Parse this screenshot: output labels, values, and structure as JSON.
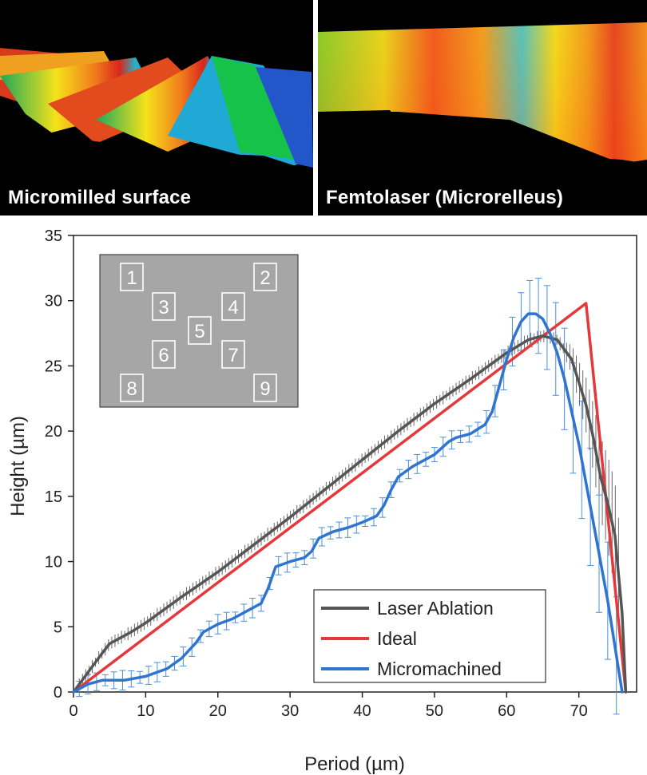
{
  "photos": {
    "left_caption": "Micromilled surface",
    "right_caption": "Femtolaser (Microrelleus)"
  },
  "chart_data": {
    "type": "line",
    "xlabel": "Period (µm)",
    "ylabel": "Height (µm)",
    "xlim": [
      0,
      78
    ],
    "ylim": [
      0,
      35
    ],
    "xticks": [
      0,
      10,
      20,
      30,
      40,
      50,
      60,
      70
    ],
    "yticks": [
      0,
      5,
      10,
      15,
      20,
      25,
      30,
      35
    ],
    "legend_position": "bottom-right",
    "inset_labels": [
      "1",
      "2",
      "3",
      "4",
      "5",
      "6",
      "7",
      "8",
      "9"
    ],
    "series": [
      {
        "name": "Laser Ablation",
        "color": "#555555",
        "x": [
          0,
          2,
          4,
          5,
          8,
          10,
          15,
          20,
          25,
          30,
          35,
          40,
          45,
          50,
          55,
          60,
          63,
          65,
          67,
          69,
          71,
          72,
          73,
          74,
          75,
          76,
          76.5
        ],
        "y": [
          0,
          1.5,
          3,
          3.7,
          4.6,
          5.3,
          7.3,
          9.2,
          11.3,
          13.4,
          15.6,
          17.8,
          20,
          22.1,
          24,
          26,
          27,
          27.3,
          27,
          25.5,
          22,
          19.5,
          16.5,
          14.5,
          12,
          6,
          0
        ],
        "error_bars": true
      },
      {
        "name": "Ideal",
        "color": "#e5383b",
        "x": [
          0,
          71,
          76.5
        ],
        "y": [
          0,
          29.8,
          0
        ]
      },
      {
        "name": "Micromachined",
        "color": "#2f74d0",
        "x": [
          0,
          2,
          4,
          7,
          10,
          13,
          15,
          17,
          18,
          20,
          22,
          24,
          26,
          27,
          28,
          30,
          32,
          33,
          34,
          36,
          38,
          40,
          42,
          43,
          44,
          45,
          47,
          50,
          52,
          53,
          55,
          57,
          58,
          59,
          60,
          61,
          62,
          63,
          64,
          65,
          66,
          67,
          68,
          70,
          72,
          74,
          76
        ],
        "y": [
          0,
          0.6,
          0.9,
          0.9,
          1.2,
          1.8,
          2.6,
          3.8,
          4.6,
          5.2,
          5.6,
          6.2,
          6.8,
          8,
          9.6,
          10,
          10.3,
          10.8,
          11.8,
          12.3,
          12.6,
          13,
          13.5,
          14.3,
          15.5,
          16.5,
          17.3,
          18.2,
          19.2,
          19.5,
          19.8,
          20.5,
          21.5,
          23.5,
          25.5,
          27.2,
          28.4,
          29,
          29,
          28.6,
          27.5,
          26,
          24,
          19,
          13,
          7,
          0
        ],
        "error_bars": true
      }
    ]
  }
}
